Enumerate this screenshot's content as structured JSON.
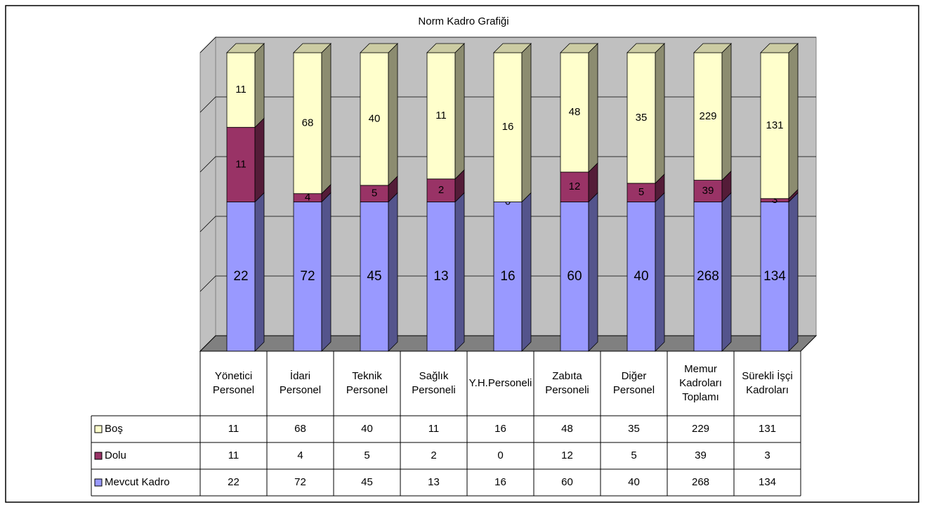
{
  "chart_data": {
    "type": "bar3d_percent_stacked",
    "title": "Norm Kadro Grafiği",
    "categories": [
      "Yönetici Personel",
      "İdari Personel",
      "Teknik Personel",
      "Sağlık Personeli",
      "Y.H.Personeli",
      "Zabıta Personeli",
      "Diğer Personel",
      "Memur Kadroları Toplamı",
      "Sürekli İşçi Kadroları"
    ],
    "series": [
      {
        "name": "Boş",
        "color": "#ffffcc",
        "values": [
          11,
          68,
          40,
          11,
          16,
          48,
          35,
          229,
          131
        ]
      },
      {
        "name": "Dolu",
        "color": "#993366",
        "values": [
          11,
          4,
          5,
          2,
          0,
          12,
          5,
          39,
          3
        ]
      },
      {
        "name": "Mevcut Kadro",
        "color": "#9999ff",
        "values": [
          22,
          72,
          45,
          13,
          16,
          60,
          40,
          268,
          134
        ]
      }
    ],
    "ylim": [
      0,
      100
    ],
    "yticks": [
      0,
      20,
      40,
      60,
      80,
      100
    ],
    "grid": true,
    "data_table": true
  }
}
